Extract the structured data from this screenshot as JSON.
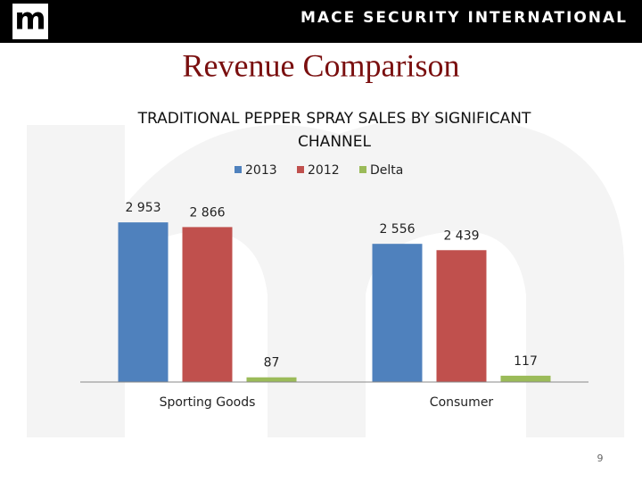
{
  "header": {
    "logo": "m",
    "company": "MACE SECURITY INTERNATIONAL"
  },
  "slide_title": "Revenue Comparison",
  "page_number": 9,
  "chart_data": {
    "type": "bar",
    "title": "TRADITIONAL PEPPER SPRAY SALES BY SIGNIFICANT CHANNEL",
    "categories": [
      "Sporting Goods",
      "Consumer"
    ],
    "series": [
      {
        "name": "2013",
        "color": "#4f81bd",
        "values": [
          2953,
          2556
        ],
        "value_labels": [
          "2 953",
          "2 556"
        ]
      },
      {
        "name": "2012",
        "color": "#c0504d",
        "values": [
          2866,
          2439
        ],
        "value_labels": [
          "2 866",
          "2 439"
        ]
      },
      {
        "name": "Delta",
        "color": "#9bbb59",
        "values": [
          87,
          117
        ]
      }
    ],
    "ylim": [
      0,
      3500
    ],
    "legend": "top"
  }
}
